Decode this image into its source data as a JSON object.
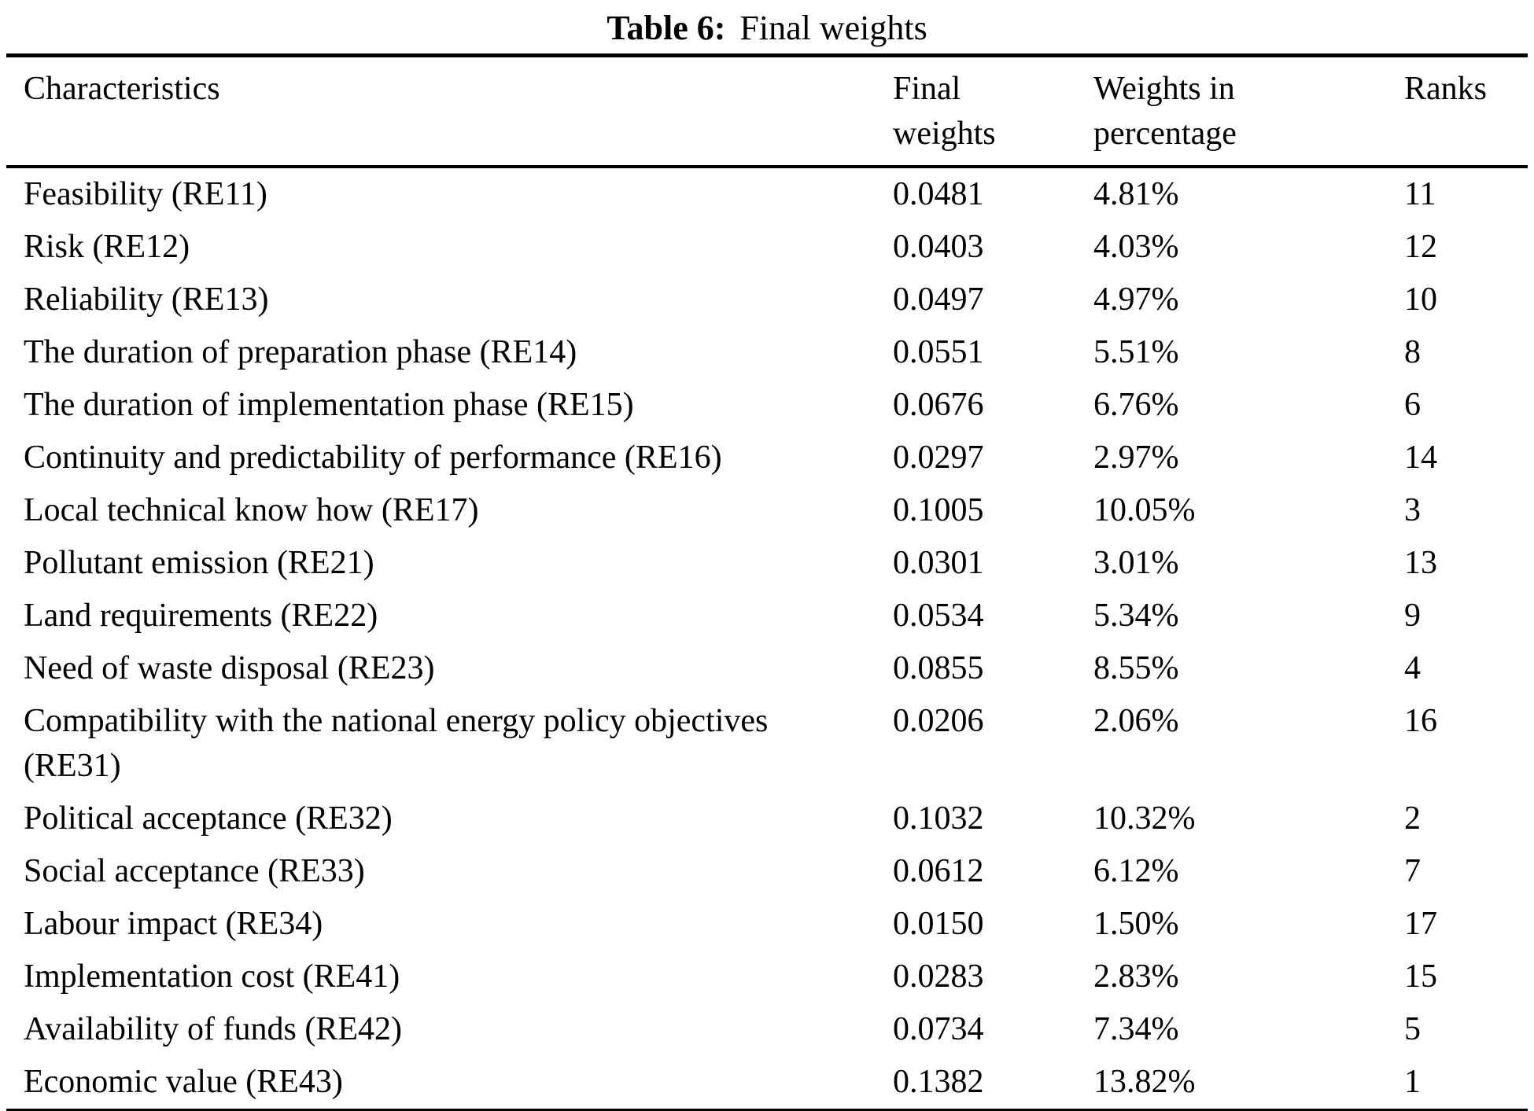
{
  "caption": {
    "label": "Table 6:",
    "text": "Final weights"
  },
  "table": {
    "headers": {
      "characteristics": "Characteristics",
      "final_weights": "Final weights",
      "weights_percentage": "Weights in percentage",
      "ranks": "Ranks"
    },
    "rows": [
      {
        "characteristic": "Feasibility (RE11)",
        "final_weight": "0.0481",
        "weight_pct": "4.81%",
        "rank": "11"
      },
      {
        "characteristic": "Risk (RE12)",
        "final_weight": "0.0403",
        "weight_pct": "4.03%",
        "rank": "12"
      },
      {
        "characteristic": "Reliability (RE13)",
        "final_weight": "0.0497",
        "weight_pct": "4.97%",
        "rank": "10"
      },
      {
        "characteristic": "The duration of preparation phase (RE14)",
        "final_weight": "0.0551",
        "weight_pct": "5.51%",
        "rank": "8"
      },
      {
        "characteristic": "The duration of implementation phase (RE15)",
        "final_weight": "0.0676",
        "weight_pct": "6.76%",
        "rank": "6"
      },
      {
        "characteristic": "Continuity and predictability of performance (RE16)",
        "final_weight": "0.0297",
        "weight_pct": "2.97%",
        "rank": "14"
      },
      {
        "characteristic": "Local technical know how (RE17)",
        "final_weight": "0.1005",
        "weight_pct": "10.05%",
        "rank": "3"
      },
      {
        "characteristic": "Pollutant emission (RE21)",
        "final_weight": "0.0301",
        "weight_pct": "3.01%",
        "rank": "13"
      },
      {
        "characteristic": "Land requirements (RE22)",
        "final_weight": "0.0534",
        "weight_pct": "5.34%",
        "rank": "9"
      },
      {
        "characteristic": "Need of waste disposal (RE23)",
        "final_weight": "0.0855",
        "weight_pct": "8.55%",
        "rank": "4"
      },
      {
        "characteristic": "Compatibility with the national energy policy objectives (RE31)",
        "final_weight": "0.0206",
        "weight_pct": "2.06%",
        "rank": "16"
      },
      {
        "characteristic": "Political acceptance (RE32)",
        "final_weight": "0.1032",
        "weight_pct": "10.32%",
        "rank": "2"
      },
      {
        "characteristic": "Social acceptance (RE33)",
        "final_weight": "0.0612",
        "weight_pct": "6.12%",
        "rank": "7"
      },
      {
        "characteristic": "Labour impact (RE34)",
        "final_weight": "0.0150",
        "weight_pct": "1.50%",
        "rank": "17"
      },
      {
        "characteristic": "Implementation cost (RE41)",
        "final_weight": "0.0283",
        "weight_pct": "2.83%",
        "rank": "15"
      },
      {
        "characteristic": "Availability of funds (RE42)",
        "final_weight": "0.0734",
        "weight_pct": "7.34%",
        "rank": "5"
      },
      {
        "characteristic": "Economic value (RE43)",
        "final_weight": "0.1382",
        "weight_pct": "13.82%",
        "rank": "1"
      }
    ]
  }
}
